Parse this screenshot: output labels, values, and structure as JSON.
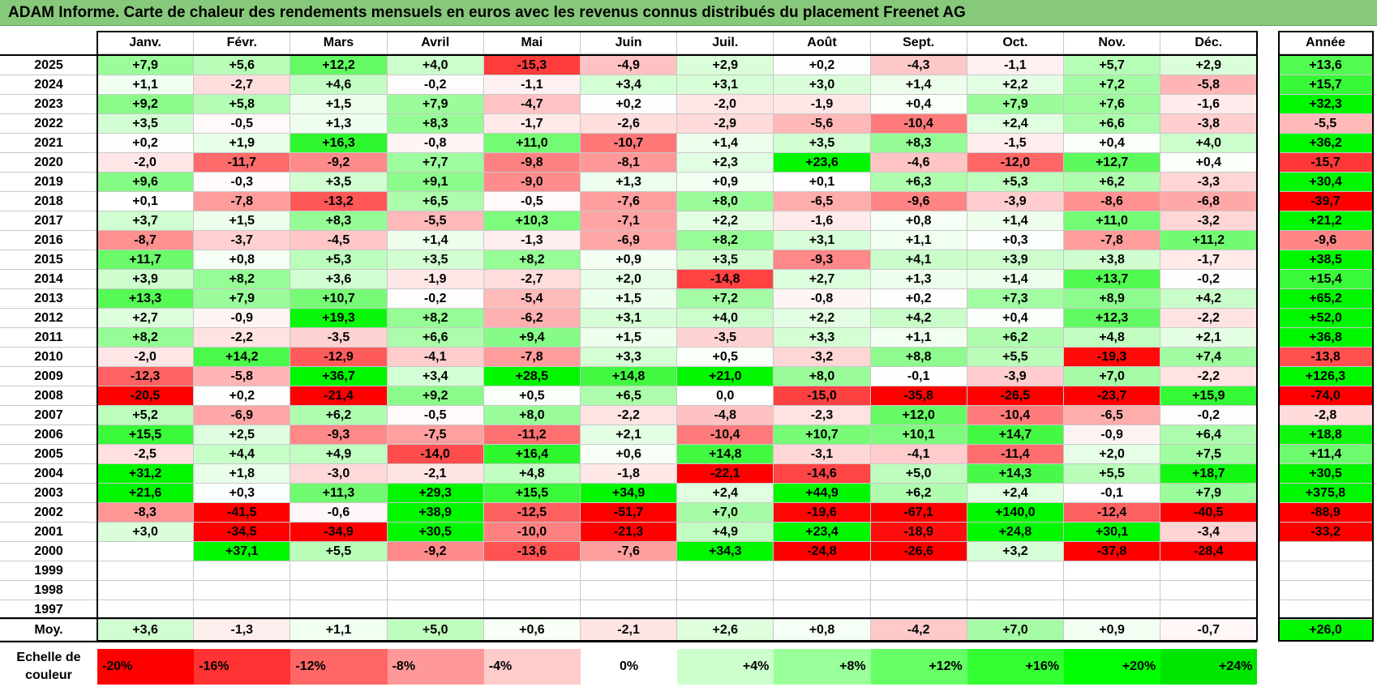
{
  "title": "ADAM Informe. Carte de chaleur des rendements mensuels en euros avec les revenus connus distribués du placement Freenet AG",
  "chart_data": {
    "type": "heatmap",
    "columns": [
      "Janv.",
      "Févr.",
      "Mars",
      "Avril",
      "Mai",
      "Juin",
      "Juil.",
      "Août",
      "Sept.",
      "Oct.",
      "Nov.",
      "Déc."
    ],
    "annual_header": "Année",
    "rows": [
      {
        "year": "2025",
        "values": [
          "+7,9",
          "+5,6",
          "+12,2",
          "+4,0",
          "-15,3",
          "-4,9",
          "+2,9",
          "+0,2",
          "-4,3",
          "-1,1",
          "+5,7",
          "+2,9"
        ],
        "annual": "+13,6"
      },
      {
        "year": "2024",
        "values": [
          "+1,1",
          "-2,7",
          "+4,6",
          "-0,2",
          "-1,1",
          "+3,4",
          "+3,1",
          "+3,0",
          "+1,4",
          "+2,2",
          "+7,2",
          "-5,8"
        ],
        "annual": "+15,7"
      },
      {
        "year": "2023",
        "values": [
          "+9,2",
          "+5,8",
          "+1,5",
          "+7,9",
          "-4,7",
          "+0,2",
          "-2,0",
          "-1,9",
          "+0,4",
          "+7,9",
          "+7,6",
          "-1,6"
        ],
        "annual": "+32,3"
      },
      {
        "year": "2022",
        "values": [
          "+3,5",
          "-0,5",
          "+1,3",
          "+8,3",
          "-1,7",
          "-2,6",
          "-2,9",
          "-5,6",
          "-10,4",
          "+2,4",
          "+6,6",
          "-3,8"
        ],
        "annual": "-5,5"
      },
      {
        "year": "2021",
        "values": [
          "+0,2",
          "+1,9",
          "+16,3",
          "-0,8",
          "+11,0",
          "-10,7",
          "+1,4",
          "+3,5",
          "+8,3",
          "-1,5",
          "+0,4",
          "+4,0"
        ],
        "annual": "+36,2"
      },
      {
        "year": "2020",
        "values": [
          "-2,0",
          "-11,7",
          "-9,2",
          "+7,7",
          "-9,8",
          "-8,1",
          "+2,3",
          "+23,6",
          "-4,6",
          "-12,0",
          "+12,7",
          "+0,4"
        ],
        "annual": "-15,7"
      },
      {
        "year": "2019",
        "values": [
          "+9,6",
          "-0,3",
          "+3,5",
          "+9,1",
          "-9,0",
          "+1,3",
          "+0,9",
          "+0,1",
          "+6,3",
          "+5,3",
          "+6,2",
          "-3,3"
        ],
        "annual": "+30,4"
      },
      {
        "year": "2018",
        "values": [
          "+0,1",
          "-7,8",
          "-13,2",
          "+6,5",
          "-0,5",
          "-7,6",
          "+8,0",
          "-6,5",
          "-9,6",
          "-3,9",
          "-8,6",
          "-6,8"
        ],
        "annual": "-39,7"
      },
      {
        "year": "2017",
        "values": [
          "+3,7",
          "+1,5",
          "+8,3",
          "-5,5",
          "+10,3",
          "-7,1",
          "+2,2",
          "-1,6",
          "+0,8",
          "+1,4",
          "+11,0",
          "-3,2"
        ],
        "annual": "+21,2"
      },
      {
        "year": "2016",
        "values": [
          "-8,7",
          "-3,7",
          "-4,5",
          "+1,4",
          "-1,3",
          "-6,9",
          "+8,2",
          "+3,1",
          "+1,1",
          "+0,3",
          "-7,8",
          "+11,2"
        ],
        "annual": "-9,6"
      },
      {
        "year": "2015",
        "values": [
          "+11,7",
          "+0,8",
          "+5,3",
          "+3,5",
          "+8,2",
          "+0,9",
          "+3,5",
          "-9,3",
          "+4,1",
          "+3,9",
          "+3,8",
          "-1,7"
        ],
        "annual": "+38,5"
      },
      {
        "year": "2014",
        "values": [
          "+3,9",
          "+8,2",
          "+3,6",
          "-1,9",
          "-2,7",
          "+2,0",
          "-14,8",
          "+2,7",
          "+1,3",
          "+1,4",
          "+13,7",
          "-0,2"
        ],
        "annual": "+15,4"
      },
      {
        "year": "2013",
        "values": [
          "+13,3",
          "+7,9",
          "+10,7",
          "-0,2",
          "-5,4",
          "+1,5",
          "+7,2",
          "-0,8",
          "+0,2",
          "+7,3",
          "+8,9",
          "+4,2"
        ],
        "annual": "+65,2"
      },
      {
        "year": "2012",
        "values": [
          "+2,7",
          "-0,9",
          "+19,3",
          "+8,2",
          "-6,2",
          "+3,1",
          "+4,0",
          "+2,2",
          "+4,2",
          "+0,4",
          "+12,3",
          "-2,2"
        ],
        "annual": "+52,0"
      },
      {
        "year": "2011",
        "values": [
          "+8,2",
          "-2,2",
          "-3,5",
          "+6,6",
          "+9,4",
          "+1,5",
          "-3,5",
          "+3,3",
          "+1,1",
          "+6,2",
          "+4,8",
          "+2,1"
        ],
        "annual": "+36,8"
      },
      {
        "year": "2010",
        "values": [
          "-2,0",
          "+14,2",
          "-12,9",
          "-4,1",
          "-7,8",
          "+3,3",
          "+0,5",
          "-3,2",
          "+8,8",
          "+5,5",
          "-19,3",
          "+7,4"
        ],
        "annual": "-13,8"
      },
      {
        "year": "2009",
        "values": [
          "-12,3",
          "-5,8",
          "+36,7",
          "+3,4",
          "+28,5",
          "+14,8",
          "+21,0",
          "+8,0",
          "-0,1",
          "-3,9",
          "+7,0",
          "-2,2"
        ],
        "annual": "+126,3"
      },
      {
        "year": "2008",
        "values": [
          "-20,5",
          "+0,2",
          "-21,4",
          "+9,2",
          "+0,5",
          "+6,5",
          "0,0",
          "-15,0",
          "-35,8",
          "-26,5",
          "-23,7",
          "+15,9"
        ],
        "annual": "-74,0"
      },
      {
        "year": "2007",
        "values": [
          "+5,2",
          "-6,9",
          "+6,2",
          "-0,5",
          "+8,0",
          "-2,2",
          "-4,8",
          "-2,3",
          "+12,0",
          "-10,4",
          "-6,5",
          "-0,2"
        ],
        "annual": "-2,8"
      },
      {
        "year": "2006",
        "values": [
          "+15,5",
          "+2,5",
          "-9,3",
          "-7,5",
          "-11,2",
          "+2,1",
          "-10,4",
          "+10,7",
          "+10,1",
          "+14,7",
          "-0,9",
          "+6,4"
        ],
        "annual": "+18,8"
      },
      {
        "year": "2005",
        "values": [
          "-2,5",
          "+4,4",
          "+4,9",
          "-14,0",
          "+16,4",
          "+0,6",
          "+14,8",
          "-3,1",
          "-4,1",
          "-11,4",
          "+2,0",
          "+7,5"
        ],
        "annual": "+11,4"
      },
      {
        "year": "2004",
        "values": [
          "+31,2",
          "+1,8",
          "-3,0",
          "-2,1",
          "+4,8",
          "-1,8",
          "-22,1",
          "-14,6",
          "+5,0",
          "+14,3",
          "+5,5",
          "+18,7"
        ],
        "annual": "+30,5"
      },
      {
        "year": "2003",
        "values": [
          "+21,6",
          "+0,3",
          "+11,3",
          "+29,3",
          "+15,5",
          "+34,9",
          "+2,4",
          "+44,9",
          "+6,2",
          "+2,4",
          "-0,1",
          "+7,9"
        ],
        "annual": "+375,8"
      },
      {
        "year": "2002",
        "values": [
          "-8,3",
          "-41,5",
          "-0,6",
          "+38,9",
          "-12,5",
          "-51,7",
          "+7,0",
          "-19,6",
          "-67,1",
          "+140,0",
          "-12,4",
          "-40,5"
        ],
        "annual": "-88,9"
      },
      {
        "year": "2001",
        "values": [
          "+3,0",
          "-34,5",
          "-34,9",
          "+30,5",
          "-10,0",
          "-21,3",
          "+4,9",
          "+23,4",
          "-18,9",
          "+24,8",
          "+30,1",
          "-3,4"
        ],
        "annual": "-33,2"
      },
      {
        "year": "2000",
        "values": [
          "",
          "+37,1",
          "+5,5",
          "-9,2",
          "-13,6",
          "-7,6",
          "+34,3",
          "-24,8",
          "-26,6",
          "+3,2",
          "-37,8",
          "-28,4"
        ],
        "annual": ""
      },
      {
        "year": "1999",
        "values": [
          "",
          "",
          "",
          "",
          "",
          "",
          "",
          "",
          "",
          "",
          "",
          ""
        ],
        "annual": ""
      },
      {
        "year": "1998",
        "values": [
          "",
          "",
          "",
          "",
          "",
          "",
          "",
          "",
          "",
          "",
          "",
          ""
        ],
        "annual": ""
      },
      {
        "year": "1997",
        "values": [
          "",
          "",
          "",
          "",
          "",
          "",
          "",
          "",
          "",
          "",
          "",
          ""
        ],
        "annual": ""
      }
    ],
    "average_label": "Moy.",
    "average": {
      "values": [
        "+3,6",
        "-1,3",
        "+1,1",
        "+5,0",
        "+0,6",
        "-2,1",
        "+2,6",
        "+0,8",
        "-4,2",
        "+7,0",
        "+0,9",
        "-0,7"
      ],
      "annual": "+26,0"
    },
    "legend_label": "Echelle de couleur",
    "legend": [
      {
        "label": "-20%",
        "color": "#ff0000"
      },
      {
        "label": "-16%",
        "color": "#ff3333"
      },
      {
        "label": "-12%",
        "color": "#ff6666"
      },
      {
        "label": "-8%",
        "color": "#ff9999"
      },
      {
        "label": "-4%",
        "color": "#ffcccc"
      },
      {
        "label": "0%",
        "color": "#ffffff"
      },
      {
        "label": "+4%",
        "color": "#ccffcc"
      },
      {
        "label": "+8%",
        "color": "#99ff99"
      },
      {
        "label": "+12%",
        "color": "#66ff66"
      },
      {
        "label": "+16%",
        "color": "#33ff33"
      },
      {
        "label": "+20%",
        "color": "#00ff00"
      },
      {
        "label": "+24%",
        "color": "#00e600"
      }
    ]
  }
}
